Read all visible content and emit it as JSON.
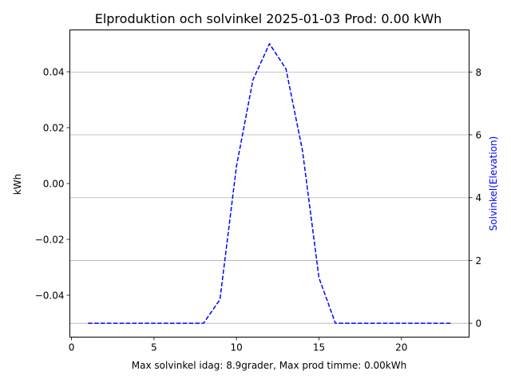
{
  "chart_data": {
    "type": "line",
    "title": "Elproduktion och solvinkel 2025-01-03 Prod: 0.00 kWh",
    "xlabel": "Max solvinkel idag: 8.9grader, Max prod timme: 0.00kWh",
    "ylabel_left": "kWh",
    "ylabel_right": "Solvinkel(Elevation)",
    "xlim": [
      -0.1,
      24.1
    ],
    "ylim_left": [
      -0.055,
      0.055
    ],
    "ylim_right": [
      -0.44,
      9.34
    ],
    "x_ticks": [
      0,
      5,
      10,
      15,
      20
    ],
    "y_left_ticks": [
      {
        "value": 0.04,
        "label": "0.04"
      },
      {
        "value": 0.02,
        "label": "0.02"
      },
      {
        "value": 0.0,
        "label": "0.00"
      },
      {
        "value": -0.02,
        "label": "−0.02"
      },
      {
        "value": -0.04,
        "label": "−0.04"
      }
    ],
    "y_right_ticks": [
      0,
      2,
      4,
      6,
      8
    ],
    "grid": "horizontal lines at right-axis ticks",
    "series": [
      {
        "axis": "right",
        "color": "#0000ff",
        "style": "dashed",
        "x": [
          1,
          2,
          3,
          4,
          5,
          6,
          7,
          8,
          9,
          10,
          11,
          12,
          13,
          14,
          15,
          16,
          17,
          18,
          19,
          20,
          21,
          22,
          23
        ],
        "y": [
          0,
          0,
          0,
          0,
          0,
          0,
          0,
          0,
          0.76,
          5.0,
          7.75,
          8.9,
          8.1,
          5.5,
          1.45,
          0,
          0,
          0,
          0,
          0,
          0,
          0,
          0
        ]
      }
    ],
    "colors": {
      "axis": "#000000",
      "grid": "#b0b0b0",
      "right_label": "#0000ff"
    }
  }
}
